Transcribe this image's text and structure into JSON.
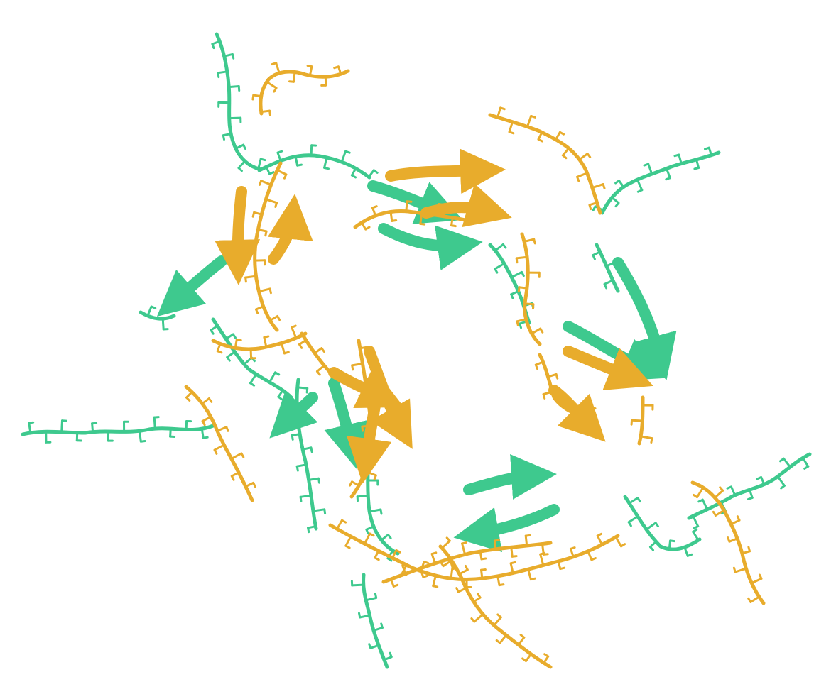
{
  "scene": {
    "subject": "protein-ribbon-model",
    "background": "#ffffff",
    "colors": {
      "chain_a": "#3ec98e",
      "chain_a_dark": "#23966a",
      "chain_b": "#e8ac2c",
      "chain_b_dark": "#b47f12"
    },
    "chains": [
      {
        "id": "green",
        "color_key": "chain_a"
      },
      {
        "id": "gold",
        "color_key": "chain_b"
      }
    ]
  }
}
